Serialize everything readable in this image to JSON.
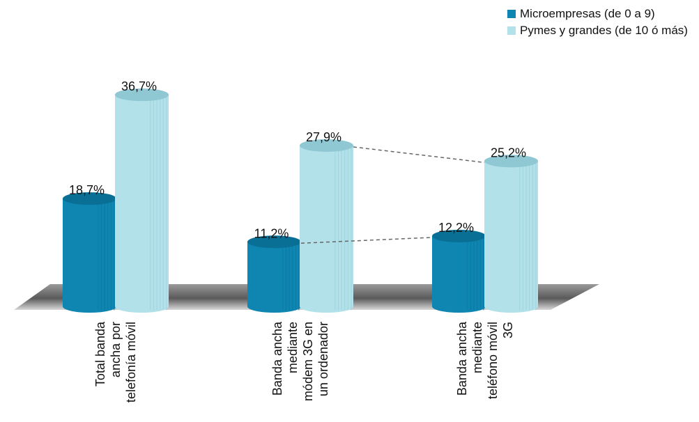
{
  "chart_data": {
    "type": "bar",
    "categories": [
      [
        "Total banda",
        "ancha por",
        "telefonía móvil"
      ],
      [
        "Banda ancha",
        "mediante",
        "módem 3G en",
        "un ordenador"
      ],
      [
        "Banda ancha",
        "mediante",
        "teléfono móvil",
        "3G"
      ]
    ],
    "series": [
      {
        "name": "Microempresas (de 0 a 9)",
        "values": [
          18.7,
          11.2,
          12.2
        ],
        "labels": [
          "18,7%",
          "11,2%",
          "12,2%"
        ],
        "color": "#0e86b1"
      },
      {
        "name": "Pymes y grandes (de 10 ó más)",
        "values": [
          36.7,
          27.9,
          25.2
        ],
        "labels": [
          "36,7%",
          "27,9%",
          "25,2%"
        ],
        "color": "#b3e1ea"
      }
    ],
    "unit": "%",
    "ylim": [
      0,
      40
    ],
    "grid": false,
    "legend_position": "top-right",
    "connector_lines": "dashed lines link the top of each series between the 2nd and 3rd groups"
  }
}
